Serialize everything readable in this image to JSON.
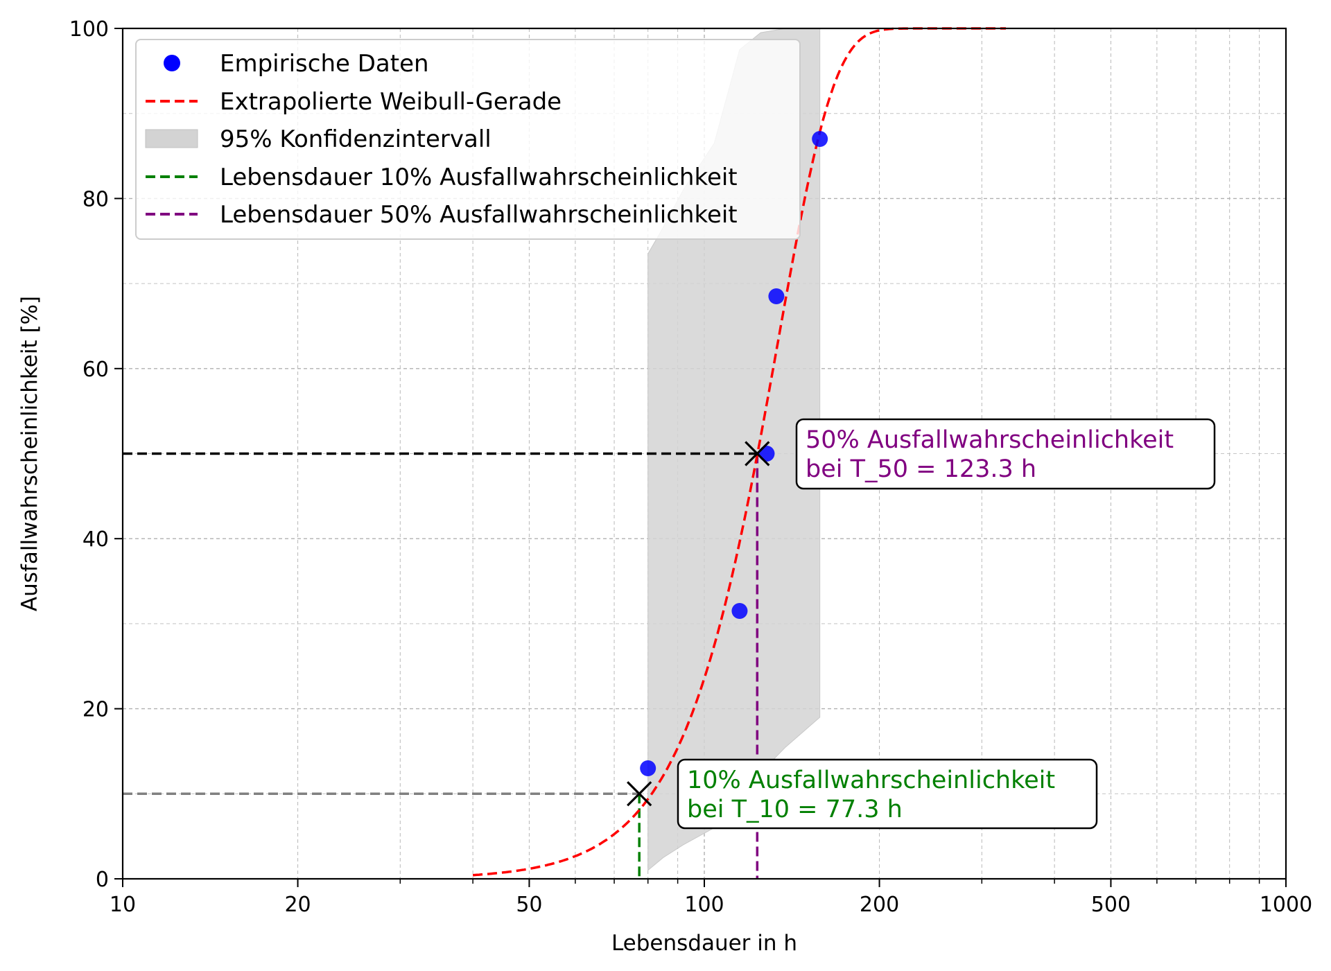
{
  "chart_data": {
    "type": "scatter",
    "xlabel": "Lebensdauer in h",
    "ylabel": "Ausfallwahrscheinlichkeit [%]",
    "xscale": "log",
    "xlim": [
      10,
      1000
    ],
    "ylim": [
      0,
      100
    ],
    "grid": "both (major and minor), dashed",
    "legend_position": "top-left",
    "x_ticks": [
      10,
      20,
      50,
      100,
      200,
      500,
      1000
    ],
    "x_tick_labels": [
      "10",
      "20",
      "50",
      "100",
      "200",
      "500",
      "1000"
    ],
    "y_ticks": [
      0,
      20,
      40,
      60,
      80,
      100
    ],
    "y_tick_labels": [
      "0",
      "20",
      "40",
      "60",
      "80",
      "100"
    ],
    "legend": [
      {
        "key": "empirical",
        "label": "Empirische Daten",
        "marker": "dot",
        "color": "#0000ff"
      },
      {
        "key": "weibull",
        "label": "Extrapolierte Weibull-Gerade",
        "marker": "dashed-line",
        "color": "#ff0000"
      },
      {
        "key": "ci",
        "label": "95% Konfidenzintervall",
        "marker": "patch",
        "color": "#d3d3d3"
      },
      {
        "key": "t10",
        "label": "Lebensdauer 10% Ausfallwahrscheinlichkeit",
        "marker": "dashed-line",
        "color": "#008000"
      },
      {
        "key": "t50",
        "label": "Lebensdauer 50% Ausfallwahrscheinlichkeit",
        "marker": "dashed-line",
        "color": "#800080"
      }
    ],
    "series": [
      {
        "name": "Empirische Daten",
        "kind": "scatter",
        "color": "#0000ff",
        "points": [
          [
            80,
            13
          ],
          [
            115,
            31.5
          ],
          [
            128,
            50
          ],
          [
            133,
            68.5
          ],
          [
            158,
            87
          ]
        ]
      },
      {
        "name": "Extrapolierte Weibull-Gerade",
        "kind": "line",
        "style": "dashed",
        "color": "#ff0000",
        "shape": 4.5,
        "scale": 133.9,
        "x_range": [
          40,
          330
        ]
      },
      {
        "name": "95% Konfidenzintervall",
        "kind": "band",
        "color": "#d3d3d3",
        "x_range": [
          80,
          158
        ],
        "lower": [
          [
            80,
            1
          ],
          [
            85,
            2.5
          ],
          [
            92,
            4
          ],
          [
            104,
            6
          ],
          [
            115,
            9
          ],
          [
            125,
            12.5
          ],
          [
            138,
            15.5
          ],
          [
            158,
            19
          ]
        ],
        "upper": [
          [
            80,
            73.5
          ],
          [
            84,
            76
          ],
          [
            92,
            81
          ],
          [
            104,
            86.5
          ],
          [
            115,
            97.5
          ],
          [
            125,
            99.5
          ],
          [
            138,
            100
          ],
          [
            158,
            100
          ]
        ]
      }
    ],
    "reference_lines": {
      "t10": {
        "x": 77.3,
        "y": 10,
        "horizontal_color": "#808080",
        "vertical_color": "#008000"
      },
      "t50": {
        "x": 123.3,
        "y": 50,
        "horizontal_color": "#000000",
        "vertical_color": "#800080"
      }
    },
    "annotations": [
      {
        "key": "t50",
        "line1": "50% Ausfallwahrscheinlichkeit",
        "line2": "bei T_50 = 123.3 h",
        "color": "#800080",
        "anchor_x": 123.3,
        "anchor_y": 50
      },
      {
        "key": "t10",
        "line1": "10% Ausfallwahrscheinlichkeit",
        "line2": "bei T_10 = 77.3 h",
        "color": "#008000",
        "anchor_x": 77.3,
        "anchor_y": 10
      }
    ]
  }
}
